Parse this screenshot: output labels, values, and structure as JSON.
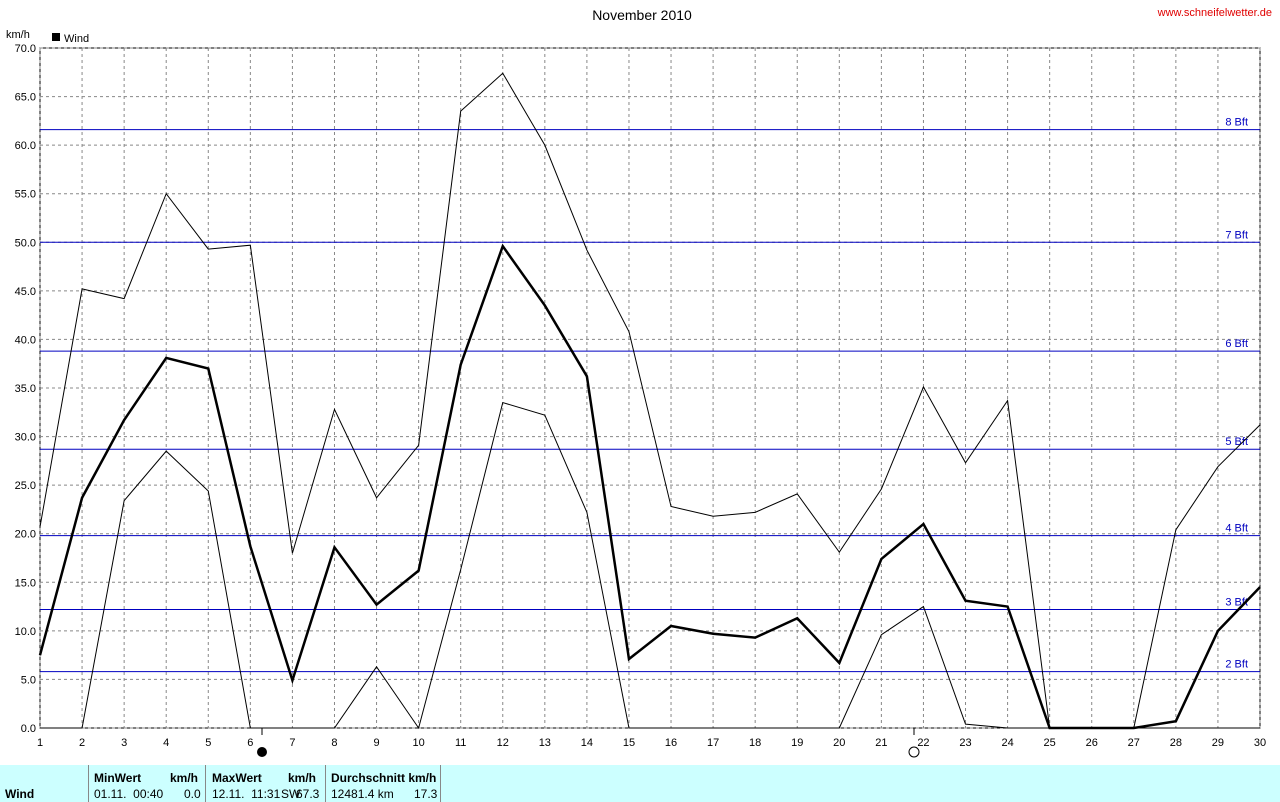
{
  "chart_data": {
    "type": "line",
    "title": "November 2010",
    "source": "www.schneifelwetter.de",
    "y_label": "km/h",
    "x": [
      1,
      2,
      3,
      4,
      5,
      6,
      7,
      8,
      9,
      10,
      11,
      12,
      13,
      14,
      15,
      16,
      17,
      18,
      19,
      20,
      21,
      22,
      23,
      24,
      25,
      26,
      27,
      28,
      29,
      30
    ],
    "xlim": [
      1,
      30
    ],
    "ylim": [
      0,
      70
    ],
    "yticks": [
      {
        "value": 0,
        "label": "0.0"
      },
      {
        "value": 5,
        "label": "5.0"
      },
      {
        "value": 10,
        "label": "10.0"
      },
      {
        "value": 15,
        "label": "15.0"
      },
      {
        "value": 20,
        "label": "20.0"
      },
      {
        "value": 25,
        "label": "25.0"
      },
      {
        "value": 30,
        "label": "30.0"
      },
      {
        "value": 35,
        "label": "35.0"
      },
      {
        "value": 40,
        "label": "40.0"
      },
      {
        "value": 45,
        "label": "45.0"
      },
      {
        "value": 50,
        "label": "50.0"
      },
      {
        "value": 55,
        "label": "55.0"
      },
      {
        "value": 60,
        "label": "60.0"
      },
      {
        "value": 65,
        "label": "65.0"
      },
      {
        "value": 70,
        "label": "70.0"
      }
    ],
    "grid": true,
    "series": [
      {
        "name": "Wind",
        "color": "#000000",
        "width": 2.5,
        "values": [
          7.5,
          23.7,
          31.7,
          38.1,
          37.0,
          18.7,
          4.9,
          18.6,
          12.7,
          16.2,
          37.4,
          49.6,
          43.5,
          36.2,
          7.1,
          10.5,
          9.7,
          9.3,
          11.3,
          6.7,
          17.4,
          21.0,
          13.1,
          12.5,
          0,
          0,
          0,
          0.7,
          10.0,
          14.5
        ]
      },
      {
        "color": "#000000",
        "width": 1,
        "values": [
          20.7,
          45.2,
          44.2,
          55.0,
          49.3,
          49.7,
          18.0,
          32.8,
          23.7,
          29.1,
          63.5,
          67.4,
          60.0,
          49.2,
          40.8,
          22.8,
          21.8,
          22.2,
          24.1,
          18.1,
          24.6,
          35.1,
          27.3,
          33.7,
          0,
          0,
          0,
          20.4,
          26.9,
          31.2
        ]
      },
      {
        "color": "#000000",
        "width": 1,
        "values": [
          0,
          0,
          23.4,
          28.5,
          24.4,
          0,
          0,
          0,
          6.3,
          0,
          16.3,
          33.5,
          32.2,
          22.2,
          0,
          0,
          0,
          0,
          0,
          0,
          9.6,
          12.5,
          0.4,
          0,
          0,
          0,
          0,
          0,
          0,
          0
        ]
      }
    ],
    "ref_color": "#0000c0",
    "ref_lines": [
      {
        "value": 5.8,
        "label": "2 Bft"
      },
      {
        "value": 12.2,
        "label": "3 Bft"
      },
      {
        "value": 19.8,
        "label": "4 Bft"
      },
      {
        "value": 28.7,
        "label": "5 Bft"
      },
      {
        "value": 38.8,
        "label": "6 Bft"
      },
      {
        "value": 50.0,
        "label": "7 Bft"
      },
      {
        "value": 61.6,
        "label": "8 Bft"
      }
    ]
  },
  "stats_table": {
    "row_label": "Wind",
    "columns": [
      {
        "header": "MinWert",
        "unit": "km/h",
        "when": "01.11.  00:40",
        "value": "0.0"
      },
      {
        "header": "MaxWert",
        "unit": "km/h",
        "when": "12.11.  11:31",
        "dir": "SW",
        "value": "67.3"
      },
      {
        "header": "Durchschnitt km/h",
        "when": "12481.4 km",
        "value": "17.3"
      }
    ]
  }
}
